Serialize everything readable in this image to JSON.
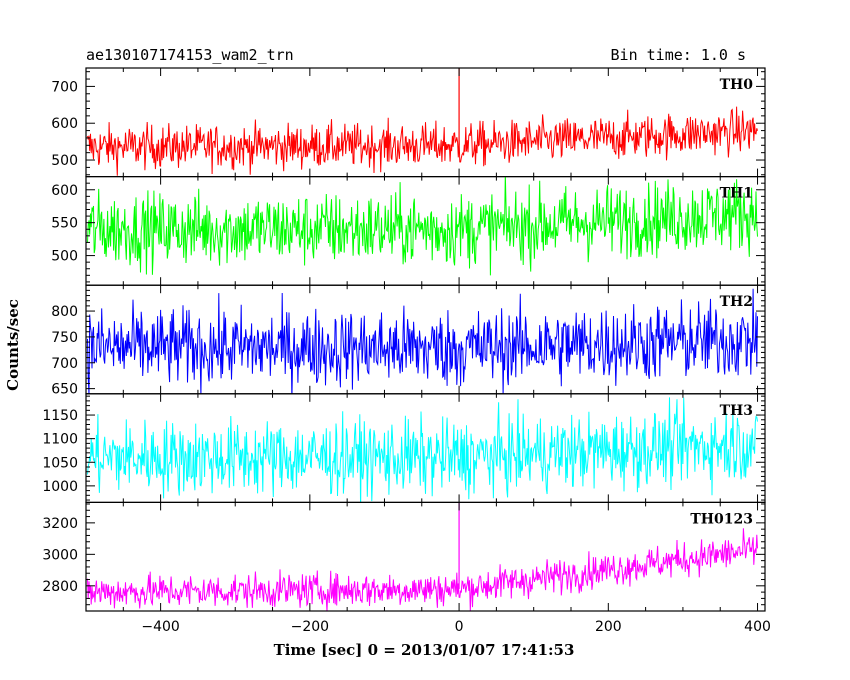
{
  "header": {
    "title": "ae130107174153_wam2_trn",
    "bin_time": "Bin time: 1.0 s"
  },
  "chart_data": {
    "type": "line",
    "xlabel": "Time [sec] 0 = 2013/01/07 17:41:53",
    "ylabel": "Counts/sec",
    "xlim": [
      -500,
      410
    ],
    "x_ticks": [
      -400,
      -200,
      0,
      200,
      400
    ],
    "x_tick_labels": [
      "−400",
      "−200",
      "0",
      "200",
      "400"
    ],
    "x_range": [
      -498,
      400
    ],
    "grid": false,
    "panels": [
      {
        "name": "TH0",
        "color": "#ff0000",
        "ylim": [
          455,
          750
        ],
        "y_ticks": [
          500,
          600,
          700
        ],
        "trend": [
          [
            -498,
            535
          ],
          [
            0,
            540
          ],
          [
            400,
            580
          ]
        ],
        "noise": 30,
        "spikes": [
          {
            "x": 0,
            "y": 752
          }
        ]
      },
      {
        "name": "TH1",
        "color": "#00ff00",
        "ylim": [
          455,
          620
        ],
        "y_ticks": [
          500,
          550,
          600
        ],
        "trend": [
          [
            -498,
            540
          ],
          [
            0,
            540
          ],
          [
            400,
            565
          ]
        ],
        "noise": 28,
        "spikes": []
      },
      {
        "name": "TH2",
        "color": "#0000ff",
        "ylim": [
          640,
          850
        ],
        "y_ticks": [
          650,
          700,
          750,
          800
        ],
        "trend": [
          [
            -498,
            730
          ],
          [
            0,
            728
          ],
          [
            400,
            745
          ]
        ],
        "noise": 38,
        "spikes": []
      },
      {
        "name": "TH3",
        "color": "#00ffff",
        "ylim": [
          965,
          1195
        ],
        "y_ticks": [
          1000,
          1050,
          1100,
          1150
        ],
        "trend": [
          [
            -498,
            1060
          ],
          [
            0,
            1060
          ],
          [
            400,
            1090
          ]
        ],
        "noise": 40,
        "spikes": []
      },
      {
        "name": "TH0123",
        "color": "#ff00ff",
        "ylim": [
          2640,
          3330
        ],
        "y_ticks": [
          2800,
          3000,
          3200
        ],
        "trend": [
          [
            -498,
            2760
          ],
          [
            0,
            2780
          ],
          [
            400,
            3030
          ]
        ],
        "noise": 55,
        "spikes": [
          {
            "x": 0,
            "y": 3330
          }
        ]
      }
    ]
  }
}
